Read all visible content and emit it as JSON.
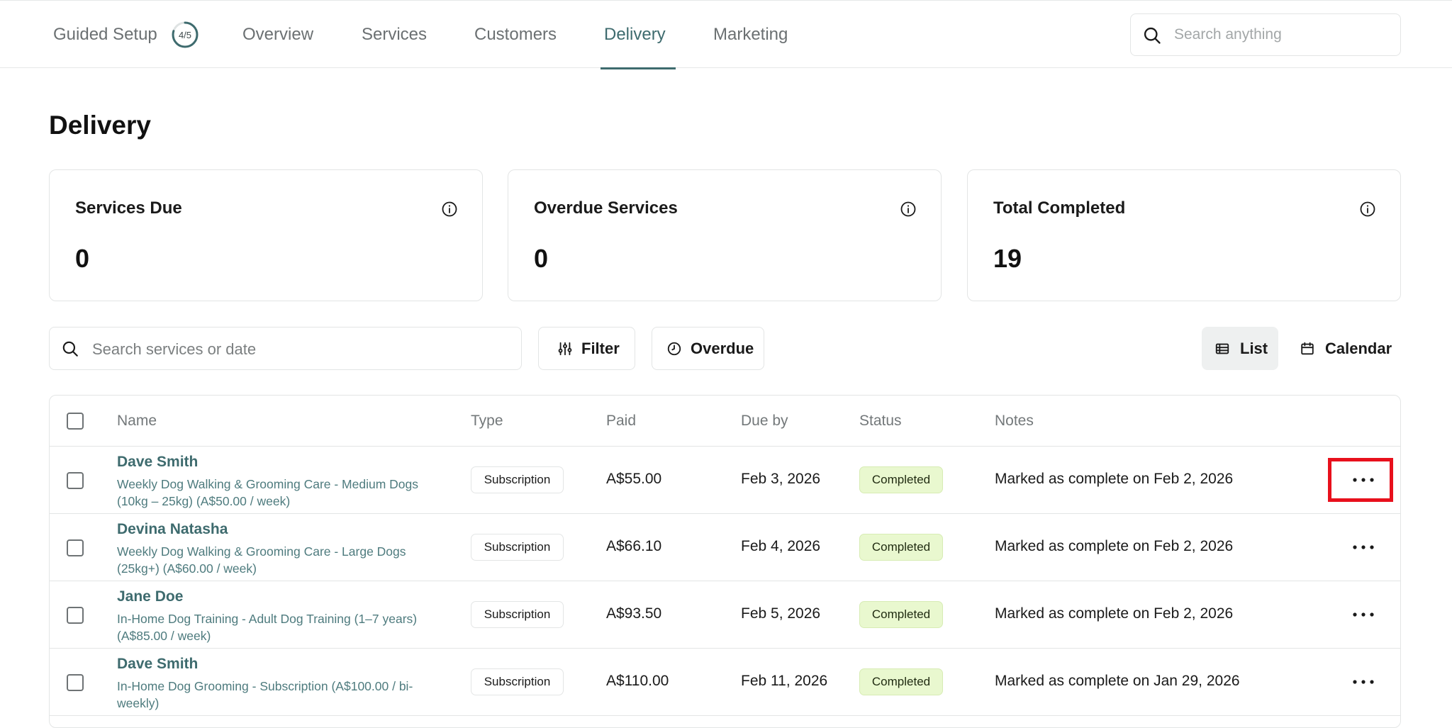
{
  "nav": {
    "guided_setup": "Guided Setup",
    "guided_progress": "4/5",
    "guided_progress_fraction": 0.8,
    "tabs": [
      {
        "label": "Overview"
      },
      {
        "label": "Services"
      },
      {
        "label": "Customers"
      },
      {
        "label": "Delivery"
      },
      {
        "label": "Marketing"
      }
    ],
    "active_tab": "Delivery",
    "search_placeholder": "Search anything"
  },
  "page": {
    "title": "Delivery"
  },
  "stats": [
    {
      "label": "Services Due",
      "value": "0"
    },
    {
      "label": "Overdue Services",
      "value": "0"
    },
    {
      "label": "Total Completed",
      "value": "19"
    }
  ],
  "toolbar": {
    "search_placeholder": "Search services or date",
    "filter_label": "Filter",
    "overdue_label": "Overdue",
    "list_label": "List",
    "calendar_label": "Calendar"
  },
  "table": {
    "headers": {
      "name": "Name",
      "type": "Type",
      "paid": "Paid",
      "due": "Due by",
      "status": "Status",
      "notes": "Notes"
    },
    "rows": [
      {
        "name": "Dave Smith",
        "service": "Weekly Dog Walking & Grooming Care - Medium Dogs (10kg – 25kg) (A$50.00 / week)",
        "type": "Subscription",
        "paid": "A$55.00",
        "due": "Feb 3, 2026",
        "status": "Completed",
        "notes": "Marked as complete on Feb 2, 2026"
      },
      {
        "name": "Devina Natasha",
        "service": "Weekly Dog Walking & Grooming Care - Large Dogs (25kg+) (A$60.00 / week)",
        "type": "Subscription",
        "paid": "A$66.10",
        "due": "Feb 4, 2026",
        "status": "Completed",
        "notes": "Marked as complete on Feb 2, 2026"
      },
      {
        "name": "Jane Doe",
        "service": "In-Home Dog Training - Adult Dog Training (1–7 years) (A$85.00 / week)",
        "type": "Subscription",
        "paid": "A$93.50",
        "due": "Feb 5, 2026",
        "status": "Completed",
        "notes": "Marked as complete on Feb 2, 2026"
      },
      {
        "name": "Dave Smith",
        "service": "In-Home Dog Grooming - Subscription (A$100.00 / bi-weekly)",
        "type": "Subscription",
        "paid": "A$110.00",
        "due": "Feb 11, 2026",
        "status": "Completed",
        "notes": "Marked as complete on Jan 29, 2026"
      }
    ]
  },
  "colors": {
    "accent": "#3e6b6e",
    "status_completed_bg": "#e9f8cf",
    "highlight": "#e8101c"
  },
  "icons": {
    "search": "search-icon",
    "info": "info-icon",
    "filter": "sliders-icon",
    "overdue": "clock-icon",
    "list": "list-icon",
    "calendar": "calendar-icon",
    "more": "more-horizontal-icon"
  }
}
